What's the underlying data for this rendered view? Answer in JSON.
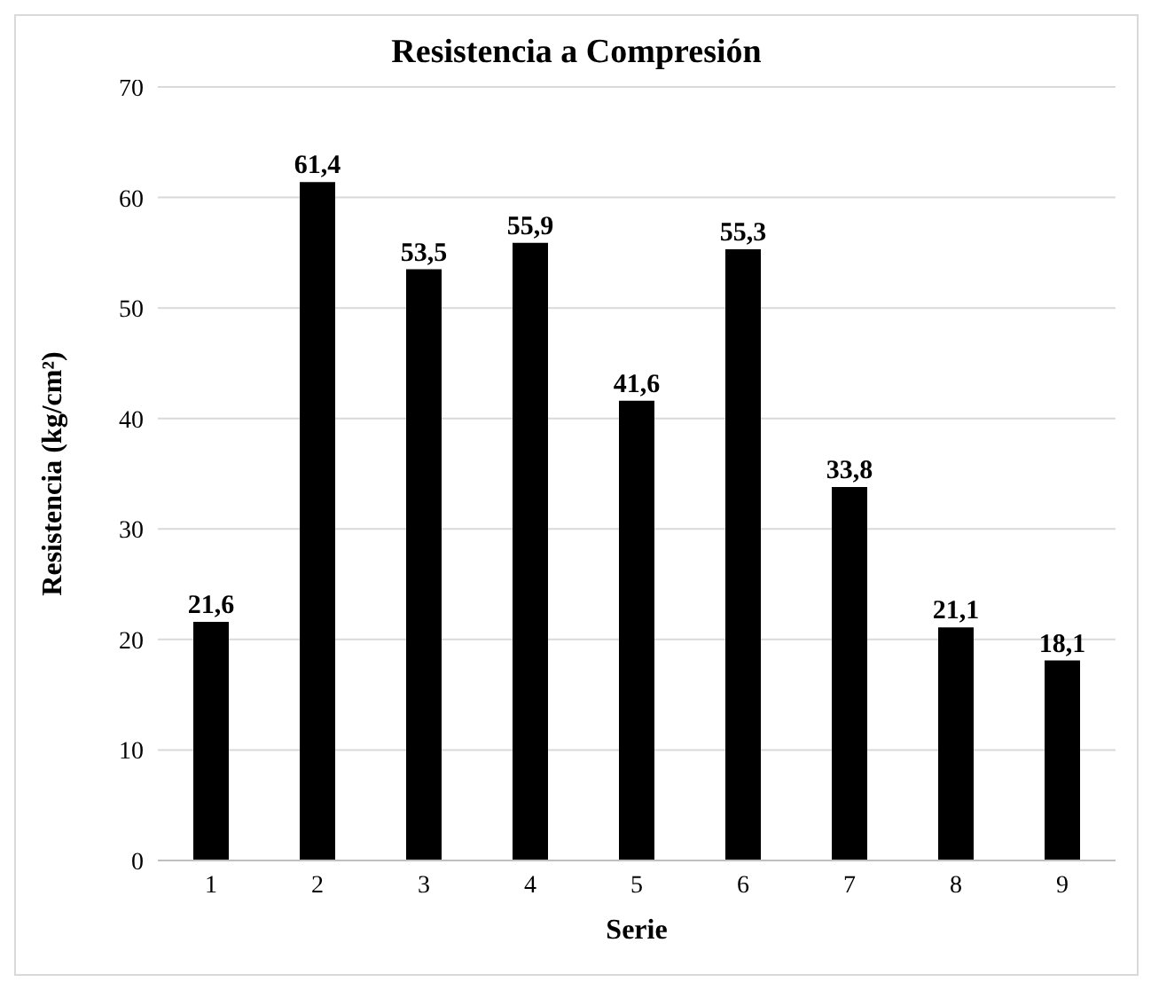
{
  "chart_data": {
    "type": "bar",
    "title": "Resistencia a Compresión",
    "xlabel": "Serie",
    "ylabel": "Resistencia (kg/cm²)",
    "categories": [
      "1",
      "2",
      "3",
      "4",
      "5",
      "6",
      "7",
      "8",
      "9"
    ],
    "values": [
      21.6,
      61.4,
      53.5,
      55.9,
      41.6,
      55.3,
      33.8,
      21.1,
      18.1
    ],
    "value_labels": [
      "21,6",
      "61,4",
      "53,5",
      "55,9",
      "41,6",
      "55,3",
      "33,8",
      "21,1",
      "18,1"
    ],
    "color": "#000000",
    "ylim": [
      0,
      70
    ],
    "yticks": [
      0,
      10,
      20,
      30,
      40,
      50,
      60,
      70
    ],
    "grid": "y"
  }
}
